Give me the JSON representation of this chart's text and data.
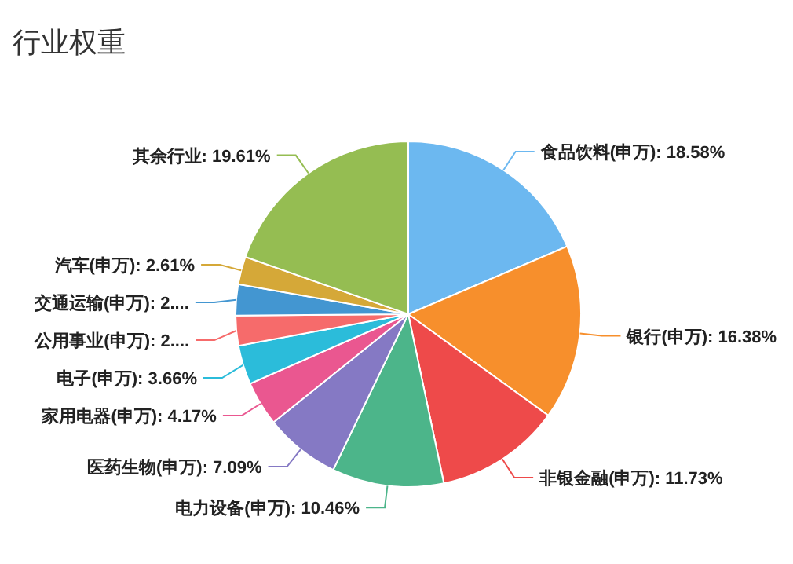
{
  "chart_data": {
    "type": "pie",
    "title": "行业权重",
    "categories": [
      "食品饮料(申万)",
      "银行(申万)",
      "非银金融(申万)",
      "电力设备(申万)",
      "医药生物(申万)",
      "家用电器(申万)",
      "电子(申万)",
      "公用事业(申万)",
      "交通运输(申万)",
      "汽车(申万)",
      "其余行业"
    ],
    "values": [
      18.58,
      16.38,
      11.73,
      10.46,
      7.09,
      4.17,
      3.66,
      2.8,
      2.9,
      2.61,
      19.61
    ],
    "value_labels": [
      "18.58%",
      "16.38%",
      "11.73%",
      "10.46%",
      "7.09%",
      "4.17%",
      "3.66%",
      "2....",
      "2....",
      "2.61%",
      "19.61%"
    ],
    "colors": [
      "#6cb8f0",
      "#f78f2c",
      "#ee4a4a",
      "#4cb58a",
      "#8579c4",
      "#ea5790",
      "#2bbcda",
      "#f66b6b",
      "#4396d1",
      "#d5a838",
      "#95bd52"
    ]
  }
}
